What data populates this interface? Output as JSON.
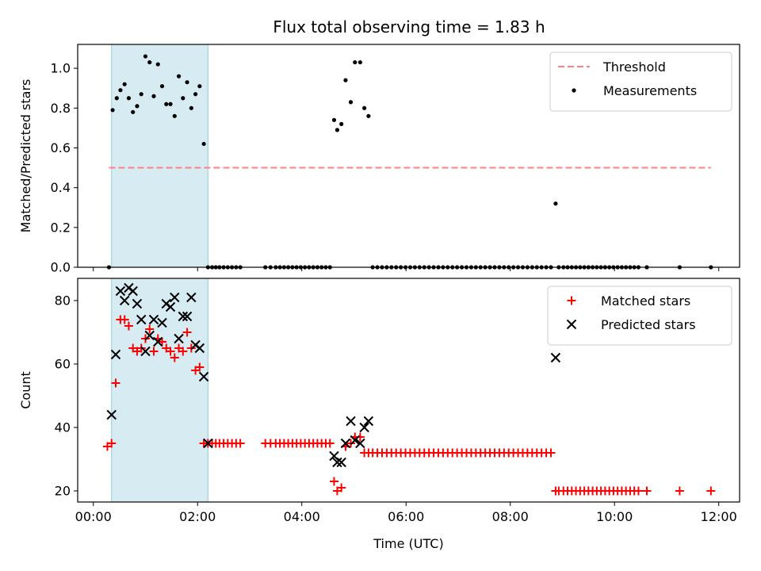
{
  "chart_data": [
    {
      "type": "scatter",
      "title": "Flux total observing time = 1.83 h",
      "xlabel": "",
      "ylabel": "Matched/Predicted stars",
      "xlim": [
        -0.3,
        12.4
      ],
      "ylim": [
        0,
        1.12
      ],
      "yticks": [
        0.0,
        0.2,
        0.4,
        0.6,
        0.8,
        1.0
      ],
      "ytick_labels": [
        "0.0",
        "0.2",
        "0.4",
        "0.6",
        "0.8",
        "1.0"
      ],
      "xticks": [
        0,
        2,
        4,
        6,
        8,
        10,
        12
      ],
      "xtick_labels": [],
      "span": [
        0.35,
        2.2
      ],
      "span_color": "#add8e6",
      "legend_position": "top-right",
      "threshold": {
        "name": "Threshold",
        "value": 0.5,
        "x_range": [
          0.3,
          11.85
        ],
        "color": "#ff8080"
      },
      "series": [
        {
          "name": "Measurements",
          "color": "#000000",
          "marker": "dot",
          "x": [
            0.3,
            0.37,
            0.45,
            0.52,
            0.6,
            0.68,
            0.76,
            0.84,
            0.92,
            1.0,
            1.08,
            1.16,
            1.24,
            1.32,
            1.4,
            1.48,
            1.56,
            1.64,
            1.72,
            1.8,
            1.88,
            1.96,
            2.04,
            2.12,
            2.2,
            2.28,
            2.35,
            2.42,
            2.5,
            2.58,
            2.66,
            2.74,
            2.82,
            3.3,
            3.4,
            3.5,
            3.58,
            3.66,
            3.74,
            3.82,
            3.9,
            3.98,
            4.06,
            4.14,
            4.22,
            4.3,
            4.38,
            4.46,
            4.54,
            4.62,
            4.68,
            4.76,
            4.84,
            4.94,
            5.02,
            5.12,
            5.2,
            5.28,
            5.36,
            5.45,
            5.54,
            5.63,
            5.72,
            5.81,
            5.9,
            5.99,
            6.08,
            6.17,
            6.26,
            6.35,
            6.44,
            6.53,
            6.62,
            6.71,
            6.8,
            6.89,
            6.98,
            7.07,
            7.16,
            7.25,
            7.34,
            7.43,
            7.52,
            7.61,
            7.7,
            7.79,
            7.88,
            7.97,
            8.06,
            8.15,
            8.24,
            8.33,
            8.42,
            8.51,
            8.6,
            8.69,
            8.78,
            8.87,
            8.93,
            9.02,
            9.1,
            9.18,
            9.26,
            9.34,
            9.42,
            9.5,
            9.58,
            9.66,
            9.74,
            9.82,
            9.9,
            9.98,
            10.06,
            10.14,
            10.22,
            10.3,
            10.38,
            10.46,
            10.62,
            11.25,
            11.85
          ],
          "y": [
            0,
            0.79,
            0.85,
            0.89,
            0.92,
            0.85,
            0.78,
            0.81,
            0.87,
            1.06,
            1.03,
            0.86,
            1.02,
            0.91,
            0.82,
            0.82,
            0.76,
            0.96,
            0.85,
            0.93,
            0.8,
            0.87,
            0.91,
            0.62,
            0,
            0,
            0,
            0,
            0,
            0,
            0,
            0,
            0,
            0,
            0,
            0,
            0,
            0,
            0,
            0,
            0,
            0,
            0,
            0,
            0,
            0,
            0,
            0,
            0,
            0.74,
            0.69,
            0.72,
            0.94,
            0.83,
            1.03,
            1.03,
            0.8,
            0.76,
            0,
            0,
            0,
            0,
            0,
            0,
            0,
            0,
            0,
            0,
            0,
            0,
            0,
            0,
            0,
            0,
            0,
            0,
            0,
            0,
            0,
            0,
            0,
            0,
            0,
            0,
            0,
            0,
            0,
            0,
            0,
            0,
            0,
            0,
            0,
            0,
            0,
            0,
            0,
            0.32,
            0,
            0,
            0,
            0,
            0,
            0,
            0,
            0,
            0,
            0,
            0,
            0,
            0,
            0,
            0,
            0,
            0,
            0,
            0,
            0,
            0,
            0,
            0
          ]
        }
      ]
    },
    {
      "type": "scatter",
      "title": "",
      "xlabel": "Time (UTC)",
      "ylabel": "Count",
      "xlim": [
        -0.3,
        12.4
      ],
      "ylim": [
        16.5,
        87
      ],
      "yticks": [
        20,
        40,
        60,
        80
      ],
      "ytick_labels": [
        "20",
        "40",
        "60",
        "80"
      ],
      "xticks": [
        0,
        2,
        4,
        6,
        8,
        10,
        12
      ],
      "xtick_labels": [
        "00:00",
        "02:00",
        "04:00",
        "06:00",
        "08:00",
        "10:00",
        "12:00"
      ],
      "span": [
        0.35,
        2.2
      ],
      "span_color": "#add8e6",
      "legend_position": "top-right",
      "series": [
        {
          "name": "Matched stars",
          "color": "#ff0000",
          "marker": "plus",
          "x": [
            0.27,
            0.35,
            0.43,
            0.52,
            0.6,
            0.68,
            0.76,
            0.84,
            0.92,
            1.0,
            1.08,
            1.16,
            1.24,
            1.32,
            1.4,
            1.48,
            1.56,
            1.64,
            1.72,
            1.8,
            1.88,
            1.96,
            2.04,
            2.12,
            2.2,
            2.28,
            2.35,
            2.42,
            2.5,
            2.58,
            2.66,
            2.74,
            2.82,
            3.3,
            3.4,
            3.5,
            3.58,
            3.66,
            3.74,
            3.82,
            3.9,
            3.98,
            4.06,
            4.14,
            4.22,
            4.3,
            4.38,
            4.46,
            4.54,
            4.62,
            4.68,
            4.76,
            4.84,
            4.94,
            5.02,
            5.12,
            5.2,
            5.28,
            5.36,
            5.45,
            5.54,
            5.63,
            5.72,
            5.81,
            5.9,
            5.99,
            6.08,
            6.17,
            6.26,
            6.35,
            6.44,
            6.53,
            6.62,
            6.71,
            6.8,
            6.89,
            6.98,
            7.07,
            7.16,
            7.25,
            7.34,
            7.43,
            7.52,
            7.61,
            7.7,
            7.79,
            7.88,
            7.97,
            8.06,
            8.15,
            8.24,
            8.33,
            8.42,
            8.51,
            8.6,
            8.69,
            8.78,
            8.87,
            8.93,
            9.02,
            9.1,
            9.18,
            9.26,
            9.34,
            9.42,
            9.5,
            9.58,
            9.66,
            9.74,
            9.82,
            9.9,
            9.98,
            10.06,
            10.14,
            10.22,
            10.3,
            10.38,
            10.46,
            10.62,
            11.25,
            11.85
          ],
          "y": [
            34,
            35,
            54,
            74,
            74,
            72,
            65,
            64,
            65,
            68,
            71,
            64,
            68,
            67,
            65,
            64,
            62,
            65,
            64,
            70,
            65,
            58,
            59,
            35,
            35,
            35,
            35,
            35,
            35,
            35,
            35,
            35,
            35,
            35,
            35,
            35,
            35,
            35,
            35,
            35,
            35,
            35,
            35,
            35,
            35,
            35,
            35,
            35,
            35,
            23,
            20,
            21,
            34,
            35,
            37,
            37,
            32,
            32,
            32,
            32,
            32,
            32,
            32,
            32,
            32,
            32,
            32,
            32,
            32,
            32,
            32,
            32,
            32,
            32,
            32,
            32,
            32,
            32,
            32,
            32,
            32,
            32,
            32,
            32,
            32,
            32,
            32,
            32,
            32,
            32,
            32,
            32,
            32,
            32,
            32,
            32,
            32,
            20,
            20,
            20,
            20,
            20,
            20,
            20,
            20,
            20,
            20,
            20,
            20,
            20,
            20,
            20,
            20,
            20,
            20,
            20,
            20,
            20,
            20,
            20,
            20
          ]
        },
        {
          "name": "Predicted stars",
          "color": "#000000",
          "marker": "cross",
          "x": [
            0.35,
            0.43,
            0.52,
            0.6,
            0.68,
            0.76,
            0.84,
            0.92,
            1.0,
            1.08,
            1.16,
            1.24,
            1.32,
            1.4,
            1.48,
            1.56,
            1.64,
            1.72,
            1.8,
            1.88,
            1.96,
            2.04,
            2.12,
            2.2,
            4.62,
            4.68,
            4.76,
            4.84,
            4.94,
            5.02,
            5.12,
            5.2,
            5.28,
            8.87
          ],
          "y": [
            44,
            63,
            83,
            80,
            84,
            83,
            79,
            74,
            64,
            69,
            74,
            67,
            73,
            79,
            78,
            81,
            68,
            75,
            75,
            81,
            66,
            65,
            56,
            35,
            31,
            29,
            29,
            35,
            42,
            36,
            35,
            40,
            42,
            62
          ]
        }
      ]
    }
  ]
}
